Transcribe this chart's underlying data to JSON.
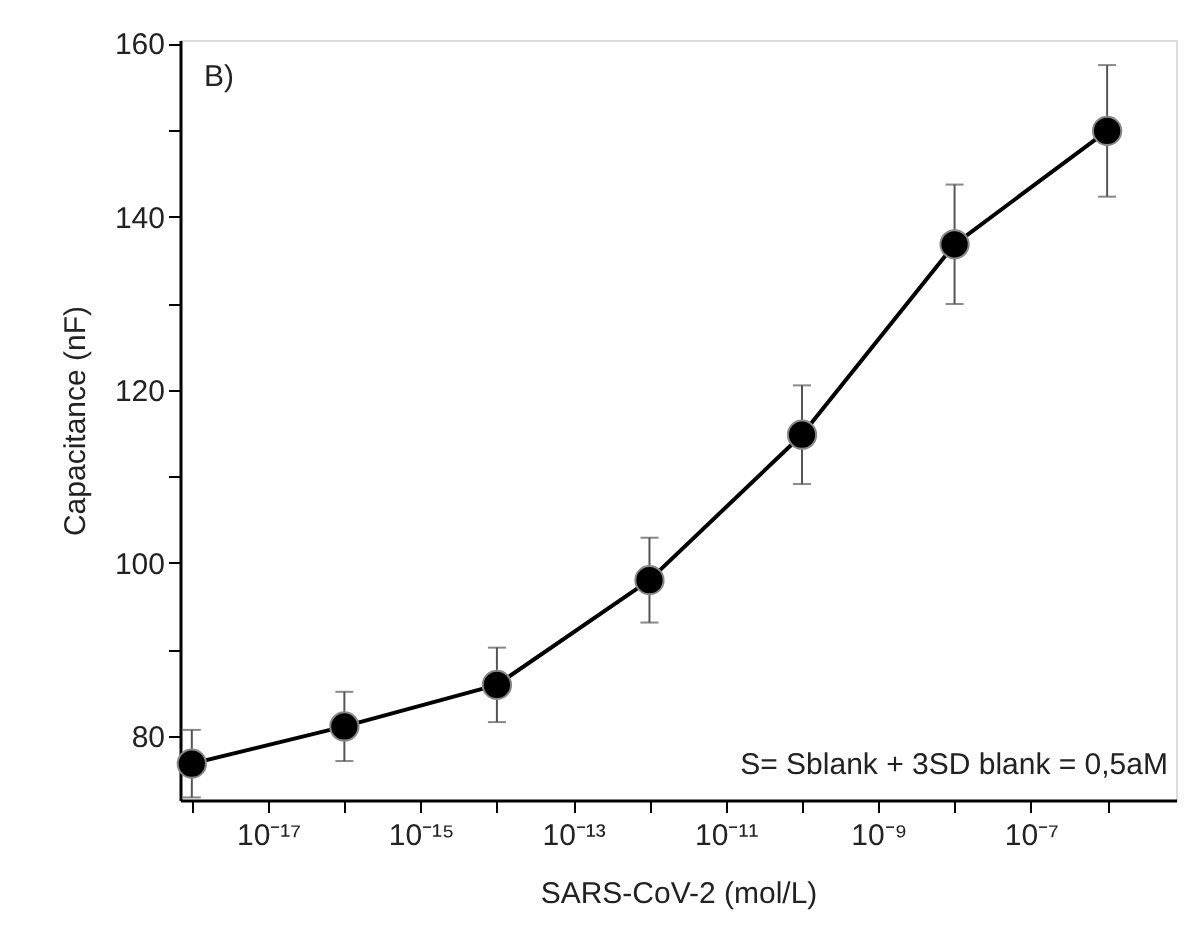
{
  "chart_data": {
    "type": "line",
    "xlabel": "SARS-CoV-2  (mol/L)",
    "ylabel": "Capacitance (nF)",
    "x": [
      1e-18,
      1e-16,
      1e-14,
      1e-12,
      1e-10,
      1e-08,
      1e-06
    ],
    "series": [
      {
        "color": "#000000",
        "values": [
          76.8,
          81.1,
          85.9,
          98.0,
          114.8,
          136.8,
          149.9
        ],
        "errors": [
          3.9,
          4.0,
          4.3,
          4.9,
          5.7,
          6.9,
          7.6
        ]
      }
    ],
    "log": "x",
    "xlim": [
      7e-19,
      8e-06
    ],
    "xticks": [
      {
        "value": 1e-18,
        "label": null
      },
      {
        "value": 1e-17,
        "label": "10⁻¹⁷"
      },
      {
        "value": 1e-16,
        "label": null
      },
      {
        "value": 1e-15,
        "label": "10⁻¹⁵"
      },
      {
        "value": 1e-14,
        "label": null
      },
      {
        "value": 1e-13,
        "label": "10⁻¹³"
      },
      {
        "value": 1e-12,
        "label": null
      },
      {
        "value": 1e-11,
        "label": "10⁻¹¹"
      },
      {
        "value": 1e-10,
        "label": null
      },
      {
        "value": 1e-09,
        "label": "10⁻⁹"
      },
      {
        "value": 1e-08,
        "label": null
      },
      {
        "value": 1e-07,
        "label": "10⁻⁷"
      },
      {
        "value": 1e-06,
        "label": null
      }
    ],
    "ylim": [
      72.6,
      160.4
    ],
    "yticks": [
      80,
      {
        "value": 90,
        "label": null
      },
      100,
      {
        "value": 110,
        "label": null
      },
      120,
      {
        "value": 130,
        "label": null
      },
      140,
      {
        "value": 150,
        "label": null
      },
      160
    ],
    "grid": false,
    "marker": "circle",
    "line_style": "solid",
    "annotations": [
      "B)",
      "S= Sblank + 3SD blank = 0,5aM"
    ]
  }
}
